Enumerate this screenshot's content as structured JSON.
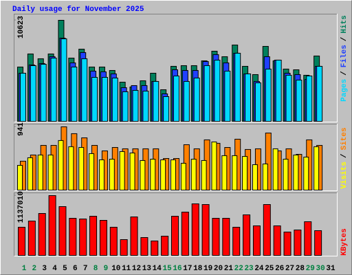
{
  "chart_data": [
    {
      "type": "bar",
      "title": "Daily usage for November 2025",
      "separator": "/",
      "ylim": [
        0,
        11129
      ],
      "yticks": [
        10623
      ],
      "series": [
        {
          "name": "Hits",
          "color": "#00805c",
          "values": [
            5710,
            7085,
            6580,
            7085,
            10623,
            6650,
            7590,
            5710,
            5710,
            5350,
            4120,
            3615,
            4265,
            5060,
            3325,
            5785,
            5855,
            5855,
            6360,
            7375,
            6795,
            8025,
            5785,
            4915,
            7880,
            6360,
            5495,
            5420,
            4845,
            6870,
            null
          ]
        },
        {
          "name": "Files",
          "color": "#2040ff",
          "values": [
            5060,
            5930,
            6075,
            6795,
            8750,
            6145,
            7230,
            5280,
            5205,
            4990,
            3540,
            3760,
            3760,
            4195,
            2890,
            5420,
            5350,
            5350,
            6290,
            7015,
            6145,
            7160,
            4990,
            4195,
            6795,
            6435,
            5060,
            4915,
            4410,
            5785,
            null
          ]
        },
        {
          "name": "Pages",
          "color": "#00d8ff",
          "values": [
            5060,
            5855,
            6000,
            6650,
            8675,
            5710,
            6580,
            4625,
            4625,
            4555,
            3110,
            3255,
            3180,
            4195,
            2600,
            4770,
            4195,
            4555,
            5855,
            6435,
            5280,
            7160,
            4990,
            4050,
            5495,
            6435,
            4845,
            4340,
            4770,
            5785,
            null
          ]
        }
      ]
    },
    {
      "type": "bar",
      "separator": "/",
      "ylim": [
        0,
        961
      ],
      "yticks": [
        941
      ],
      "series": [
        {
          "name": "Sites",
          "color": "#ff8000",
          "values": [
            430,
            522,
            665,
            665,
            941,
            839,
            777,
            665,
            583,
            634,
            614,
            614,
            614,
            614,
            470,
            470,
            675,
            614,
            747,
            696,
            634,
            757,
            604,
            614,
            849,
            583,
            614,
            532,
            747,
            665,
            null
          ]
        },
        {
          "name": "Visits",
          "color": "#ffff00",
          "values": [
            368,
            481,
            522,
            522,
            737,
            645,
            634,
            542,
            450,
            460,
            573,
            552,
            440,
            460,
            450,
            450,
            399,
            460,
            440,
            716,
            512,
            512,
            501,
            378,
            389,
            614,
            460,
            522,
            491,
            645,
            null
          ]
        }
      ]
    },
    {
      "type": "bar",
      "ylim": [
        0,
        1163148
      ],
      "yticks": [
        1137010
      ],
      "categories": [
        "1",
        "2",
        "3",
        "4",
        "5",
        "6",
        "7",
        "8",
        "9",
        "10",
        "11",
        "12",
        "13",
        "14",
        "15",
        "16",
        "17",
        "18",
        "19",
        "20",
        "21",
        "22",
        "23",
        "24",
        "25",
        "26",
        "27",
        "28",
        "29",
        "30",
        "31"
      ],
      "category_colors": [
        "#008040",
        "#008040",
        "#000000",
        "#000000",
        "#000000",
        "#000000",
        "#000000",
        "#008040",
        "#008040",
        "#000000",
        "#000000",
        "#000000",
        "#000000",
        "#000000",
        "#008040",
        "#008040",
        "#000000",
        "#000000",
        "#000000",
        "#000000",
        "#000000",
        "#008040",
        "#008040",
        "#000000",
        "#000000",
        "#000000",
        "#000000",
        "#000000",
        "#008040",
        "#008040",
        "#000000"
      ],
      "series": [
        {
          "name": "KBytes",
          "color": "#ff0000",
          "values": [
            535830,
            653450,
            797210,
            1137010,
            927900,
            705730,
            692660,
            744930,
            666520,
            535830,
            300590,
            731860,
            339790,
            274450,
            365930,
            744930,
            823350,
            980180,
            967110,
            705730,
            705730,
            535830,
            771070,
            561970,
            967110,
            561970,
            444350,
            483560,
            640380,
            470490,
            null
          ]
        }
      ]
    }
  ]
}
